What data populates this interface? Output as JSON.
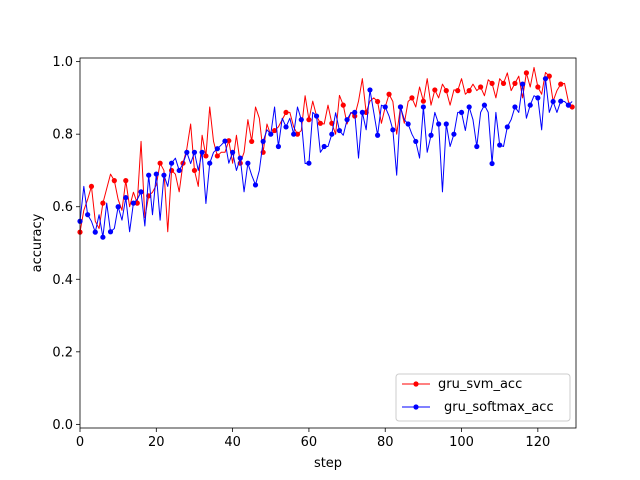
{
  "chart_data": {
    "type": "line",
    "xlabel": "step",
    "ylabel": "accuracy",
    "xlim": [
      0,
      130
    ],
    "ylim": [
      -0.01,
      1.01
    ],
    "x_ticks": [
      0,
      20,
      40,
      60,
      80,
      100,
      120
    ],
    "y_ticks": [
      0.0,
      0.2,
      0.4,
      0.6,
      0.8,
      1.0
    ],
    "x_tick_labels": [
      "0",
      "20",
      "40",
      "60",
      "80",
      "100",
      "120"
    ],
    "y_tick_labels": [
      "0.0",
      "0.2",
      "0.4",
      "0.6",
      "0.8",
      "1.0"
    ],
    "grid": false,
    "legend_position": "lower right",
    "series": [
      {
        "name": "gru_svm_acc",
        "color": "#ff0000",
        "marker_every": 3,
        "x": [
          0,
          1,
          2,
          3,
          4,
          5,
          6,
          7,
          8,
          9,
          10,
          11,
          12,
          13,
          14,
          15,
          16,
          17,
          18,
          19,
          20,
          21,
          22,
          23,
          24,
          25,
          26,
          27,
          28,
          29,
          30,
          31,
          32,
          33,
          34,
          35,
          36,
          37,
          38,
          39,
          40,
          41,
          42,
          43,
          44,
          45,
          46,
          47,
          48,
          49,
          50,
          51,
          52,
          53,
          54,
          55,
          56,
          57,
          58,
          59,
          60,
          61,
          62,
          63,
          64,
          65,
          66,
          67,
          68,
          69,
          70,
          71,
          72,
          73,
          74,
          75,
          76,
          77,
          78,
          79,
          80,
          81,
          82,
          83,
          84,
          85,
          86,
          87,
          88,
          89,
          90,
          91,
          92,
          93,
          94,
          95,
          96,
          97,
          98,
          99,
          100,
          101,
          102,
          103,
          104,
          105,
          106,
          107,
          108,
          109,
          110,
          111,
          112,
          113,
          114,
          115,
          116,
          117,
          118,
          119,
          120,
          121,
          122,
          123,
          124,
          125,
          126,
          127,
          128,
          129
        ],
        "values": [
          0.53,
          0.59,
          0.62,
          0.656,
          0.56,
          0.54,
          0.61,
          0.65,
          0.69,
          0.672,
          0.62,
          0.59,
          0.672,
          0.6,
          0.64,
          0.61,
          0.78,
          0.57,
          0.63,
          0.64,
          0.66,
          0.72,
          0.7,
          0.531,
          0.7,
          0.69,
          0.641,
          0.72,
          0.76,
          0.828,
          0.7,
          0.656,
          0.797,
          0.74,
          0.875,
          0.78,
          0.74,
          0.75,
          0.75,
          0.782,
          0.72,
          0.797,
          0.72,
          0.75,
          0.84,
          0.78,
          0.875,
          0.844,
          0.75,
          0.828,
          0.797,
          0.81,
          0.82,
          0.84,
          0.86,
          0.86,
          0.82,
          0.8,
          0.81,
          0.906,
          0.84,
          0.891,
          0.85,
          0.83,
          0.828,
          0.88,
          0.83,
          0.8,
          0.907,
          0.88,
          0.828,
          0.86,
          0.85,
          0.891,
          0.953,
          0.86,
          0.891,
          0.9,
          0.89,
          0.83,
          0.875,
          0.91,
          0.89,
          0.8,
          0.875,
          0.83,
          0.89,
          0.9,
          0.875,
          0.93,
          0.891,
          0.953,
          0.88,
          0.922,
          0.9,
          0.938,
          0.92,
          0.88,
          0.922,
          0.92,
          0.953,
          0.91,
          0.92,
          0.938,
          0.92,
          0.93,
          0.906,
          0.95,
          0.94,
          0.9,
          0.953,
          0.94,
          0.969,
          0.92,
          0.94,
          0.96,
          0.9,
          0.969,
          0.93,
          0.984,
          0.93,
          0.91,
          0.97,
          0.96,
          0.891,
          0.92,
          0.938,
          0.94,
          0.89,
          0.875
        ]
      },
      {
        "name": "gru_softmax_acc",
        "color": "#0000ff",
        "marker_every": 2,
        "x": [
          0,
          1,
          2,
          3,
          4,
          5,
          6,
          7,
          8,
          9,
          10,
          11,
          12,
          13,
          14,
          15,
          16,
          17,
          18,
          19,
          20,
          21,
          22,
          23,
          24,
          25,
          26,
          27,
          28,
          29,
          30,
          31,
          32,
          33,
          34,
          35,
          36,
          37,
          38,
          39,
          40,
          41,
          42,
          43,
          44,
          45,
          46,
          47,
          48,
          49,
          50,
          51,
          52,
          53,
          54,
          55,
          56,
          57,
          58,
          59,
          60,
          61,
          62,
          63,
          64,
          65,
          66,
          67,
          68,
          69,
          70,
          71,
          72,
          73,
          74,
          75,
          76,
          77,
          78,
          79,
          80,
          81,
          82,
          83,
          84,
          85,
          86,
          87,
          88,
          89,
          90,
          91,
          92,
          93,
          94,
          95,
          96,
          97,
          98,
          99,
          100,
          101,
          102,
          103,
          104,
          105,
          106,
          107,
          108,
          109,
          110,
          111,
          112,
          113,
          114,
          115,
          116,
          117,
          118,
          119,
          120,
          121,
          122,
          123,
          124,
          125,
          126,
          127,
          128,
          129
        ],
        "values": [
          0.56,
          0.656,
          0.578,
          0.56,
          0.53,
          0.578,
          0.516,
          0.61,
          0.531,
          0.54,
          0.6,
          0.563,
          0.625,
          0.531,
          0.61,
          0.62,
          0.641,
          0.547,
          0.687,
          0.578,
          0.69,
          0.563,
          0.687,
          0.656,
          0.72,
          0.734,
          0.7,
          0.719,
          0.75,
          0.719,
          0.75,
          0.7,
          0.75,
          0.609,
          0.72,
          0.75,
          0.76,
          0.77,
          0.781,
          0.72,
          0.75,
          0.7,
          0.734,
          0.641,
          0.72,
          0.687,
          0.66,
          0.7,
          0.78,
          0.812,
          0.8,
          0.875,
          0.766,
          0.844,
          0.82,
          0.844,
          0.8,
          0.875,
          0.84,
          0.719,
          0.72,
          0.86,
          0.85,
          0.75,
          0.766,
          0.766,
          0.8,
          0.859,
          0.81,
          0.797,
          0.84,
          0.859,
          0.86,
          0.734,
          0.86,
          0.812,
          0.922,
          0.86,
          0.797,
          0.88,
          0.875,
          0.85,
          0.812,
          0.687,
          0.875,
          0.84,
          0.828,
          0.8,
          0.78,
          0.734,
          0.875,
          0.75,
          0.797,
          0.86,
          0.828,
          0.641,
          0.828,
          0.766,
          0.8,
          0.86,
          0.86,
          0.81,
          0.875,
          0.84,
          0.766,
          0.86,
          0.88,
          0.86,
          0.719,
          0.86,
          0.77,
          0.766,
          0.82,
          0.84,
          0.875,
          0.86,
          0.938,
          0.844,
          0.88,
          0.906,
          0.9,
          0.812,
          0.953,
          0.86,
          0.89,
          0.86,
          0.891,
          0.89,
          0.88,
          0.89
        ]
      }
    ]
  }
}
